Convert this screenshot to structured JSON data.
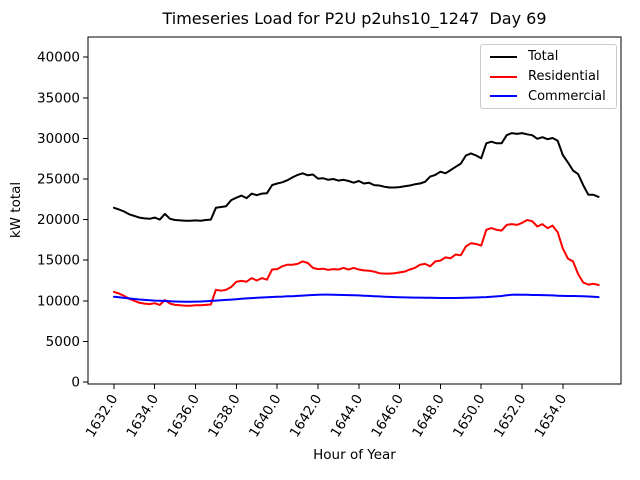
{
  "chart_data": {
    "type": "line",
    "title": "Timeseries Load for P2U p2uhs10_1247  Day 69",
    "xlabel": "Hour of Year",
    "ylabel": "kW total",
    "grid": false,
    "legend_position": "upper right",
    "background_color": "#ffffff",
    "frame_color": "#000000",
    "line_width": 2,
    "xlim": [
      1630.73,
      1656.85
    ],
    "ylim": [
      -246,
      42488
    ],
    "xticks": [
      1632,
      1634,
      1636,
      1638,
      1640,
      1642,
      1644,
      1646,
      1648,
      1650,
      1652,
      1654
    ],
    "xtick_decimals": 1,
    "yticks": [
      0,
      5000,
      10000,
      15000,
      20000,
      25000,
      30000,
      35000,
      40000
    ],
    "x": [
      1632.0,
      1632.25,
      1632.5,
      1632.75,
      1633.0,
      1633.25,
      1633.5,
      1633.75,
      1634.0,
      1634.25,
      1634.5,
      1634.75,
      1635.0,
      1635.25,
      1635.5,
      1635.75,
      1636.0,
      1636.25,
      1636.5,
      1636.75,
      1637.0,
      1637.25,
      1637.5,
      1637.75,
      1638.0,
      1638.25,
      1638.5,
      1638.75,
      1639.0,
      1639.25,
      1639.5,
      1639.75,
      1640.0,
      1640.25,
      1640.5,
      1640.75,
      1641.0,
      1641.25,
      1641.5,
      1641.75,
      1642.0,
      1642.25,
      1642.5,
      1642.75,
      1643.0,
      1643.25,
      1643.5,
      1643.75,
      1644.0,
      1644.25,
      1644.5,
      1644.75,
      1645.0,
      1645.25,
      1645.5,
      1645.75,
      1646.0,
      1646.25,
      1646.5,
      1646.75,
      1647.0,
      1647.25,
      1647.5,
      1647.75,
      1648.0,
      1648.25,
      1648.5,
      1648.75,
      1649.0,
      1649.25,
      1649.5,
      1649.75,
      1650.0,
      1650.25,
      1650.5,
      1650.75,
      1651.0,
      1651.25,
      1651.5,
      1651.75,
      1652.0,
      1652.25,
      1652.5,
      1652.75,
      1653.0,
      1653.25,
      1653.5,
      1653.75,
      1654.0,
      1654.25,
      1654.5,
      1654.75,
      1655.0,
      1655.25,
      1655.5,
      1655.75
    ],
    "series": [
      {
        "name": "Total",
        "color": "#000000",
        "values": [
          21450,
          21250,
          21000,
          20650,
          20450,
          20250,
          20150,
          20100,
          20250,
          20000,
          20700,
          20100,
          19950,
          19900,
          19850,
          19850,
          19900,
          19850,
          19950,
          20000,
          21450,
          21550,
          21650,
          22400,
          22700,
          22950,
          22650,
          23200,
          23000,
          23200,
          23250,
          24250,
          24450,
          24600,
          24850,
          25200,
          25500,
          25700,
          25450,
          25550,
          25050,
          25100,
          24900,
          25000,
          24800,
          24900,
          24750,
          24550,
          24750,
          24450,
          24550,
          24250,
          24200,
          24050,
          23950,
          23950,
          24000,
          24100,
          24200,
          24350,
          24450,
          24650,
          25300,
          25500,
          25900,
          25700,
          26100,
          26500,
          26900,
          27900,
          28150,
          27900,
          27550,
          29400,
          29600,
          29400,
          29400,
          30400,
          30650,
          30550,
          30650,
          30500,
          30400,
          29950,
          30150,
          29900,
          30050,
          29700,
          27950,
          27050,
          26050,
          25600,
          24250,
          23050,
          23050,
          22800
        ]
      },
      {
        "name": "Residential",
        "color": "#ff0000",
        "values": [
          11100,
          10900,
          10600,
          10250,
          10000,
          9750,
          9650,
          9600,
          9700,
          9500,
          10100,
          9650,
          9500,
          9450,
          9400,
          9400,
          9450,
          9450,
          9500,
          9550,
          11350,
          11250,
          11350,
          11700,
          12350,
          12450,
          12350,
          12800,
          12500,
          12800,
          12600,
          13850,
          13900,
          14250,
          14450,
          14450,
          14550,
          14850,
          14650,
          14050,
          13900,
          13950,
          13800,
          13900,
          13850,
          14050,
          13850,
          14050,
          13850,
          13750,
          13700,
          13600,
          13400,
          13350,
          13350,
          13400,
          13500,
          13600,
          13850,
          14050,
          14450,
          14550,
          14250,
          14850,
          14950,
          15350,
          15250,
          15700,
          15600,
          16700,
          17100,
          17000,
          16800,
          18750,
          18950,
          18750,
          18650,
          19350,
          19450,
          19350,
          19600,
          19950,
          19800,
          19150,
          19450,
          18950,
          19250,
          18450,
          16450,
          15200,
          14850,
          13300,
          12250,
          12000,
          12100,
          11950
        ]
      },
      {
        "name": "Commercial",
        "color": "#0000ff",
        "values": [
          10500,
          10430,
          10360,
          10290,
          10220,
          10160,
          10110,
          10070,
          10030,
          10000,
          9970,
          9940,
          9920,
          9900,
          9890,
          9890,
          9900,
          9920,
          9950,
          9990,
          10030,
          10070,
          10110,
          10150,
          10200,
          10250,
          10290,
          10330,
          10370,
          10410,
          10440,
          10470,
          10500,
          10520,
          10550,
          10570,
          10600,
          10640,
          10680,
          10720,
          10750,
          10760,
          10760,
          10750,
          10730,
          10720,
          10700,
          10680,
          10660,
          10630,
          10600,
          10570,
          10540,
          10510,
          10480,
          10460,
          10440,
          10420,
          10410,
          10400,
          10390,
          10380,
          10370,
          10360,
          10350,
          10350,
          10350,
          10350,
          10360,
          10370,
          10390,
          10410,
          10430,
          10460,
          10500,
          10540,
          10590,
          10680,
          10740,
          10760,
          10750,
          10740,
          10720,
          10710,
          10700,
          10680,
          10660,
          10630,
          10600,
          10590,
          10590,
          10580,
          10560,
          10530,
          10500,
          10450
        ]
      }
    ]
  }
}
